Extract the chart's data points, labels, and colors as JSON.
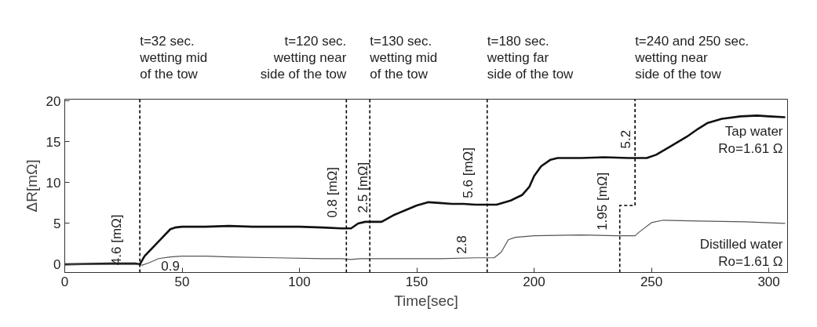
{
  "chart_data": {
    "type": "line",
    "xlabel": "Time[sec]",
    "ylabel": "ΔR[mΩ]",
    "xlim": [
      0,
      308
    ],
    "ylim": [
      -1,
      20.2
    ],
    "xticks": [
      0,
      50,
      100,
      150,
      200,
      250,
      300
    ],
    "yticks": [
      0,
      5,
      10,
      15,
      20
    ],
    "grid": false,
    "series": [
      {
        "name": "Tap water\nRo=1.61 Ω",
        "color": "#111111",
        "x": [
          0,
          20,
          30,
          32,
          34,
          40,
          45,
          47,
          50,
          60,
          70,
          80,
          90,
          100,
          110,
          118,
          122,
          125,
          128,
          132,
          135,
          140,
          145,
          150,
          155,
          160,
          165,
          170,
          175,
          180,
          184,
          190,
          195,
          198,
          200,
          203,
          207,
          210,
          220,
          230,
          240,
          248,
          252,
          258,
          265,
          270,
          274,
          280,
          288,
          295,
          300,
          307
        ],
        "values": [
          0,
          0.1,
          0.1,
          0,
          1,
          2.8,
          4.3,
          4.5,
          4.6,
          4.6,
          4.7,
          4.6,
          4.6,
          4.6,
          4.5,
          4.4,
          4.4,
          5.0,
          5.2,
          5.2,
          5.2,
          6.0,
          6.6,
          7.2,
          7.6,
          7.5,
          7.4,
          7.4,
          7.3,
          7.3,
          7.3,
          7.8,
          8.5,
          9.5,
          10.8,
          12.0,
          12.8,
          13.0,
          13.0,
          13.1,
          13.0,
          13.0,
          13.4,
          14.4,
          15.6,
          16.6,
          17.3,
          17.8,
          18.1,
          18.2,
          18.1,
          18.0
        ]
      },
      {
        "name": "Distilled water\nRo=1.61 Ω",
        "color": "#555555",
        "x": [
          0,
          30,
          33,
          36,
          40,
          45,
          50,
          60,
          70,
          90,
          110,
          118,
          122,
          126,
          135,
          150,
          160,
          175,
          183,
          186,
          189,
          192,
          200,
          220,
          235,
          243,
          245,
          250,
          255,
          270,
          290,
          307
        ],
        "values": [
          0,
          0,
          -0.1,
          0.2,
          0.7,
          0.9,
          1.0,
          1.0,
          0.9,
          0.8,
          0.7,
          0.7,
          0.6,
          0.7,
          0.7,
          0.7,
          0.7,
          0.8,
          0.8,
          1.5,
          3.0,
          3.3,
          3.5,
          3.6,
          3.5,
          3.5,
          4.0,
          5.1,
          5.4,
          5.3,
          5.2,
          5.0
        ]
      },
      {
        "color": "#000000",
        "line_style": "dashed",
        "x": [
          236.5,
          236.5,
          243,
          243
        ],
        "values": [
          -1,
          7.2,
          7.2,
          20.2
        ]
      }
    ],
    "ref_lines": [
      {
        "axis": "x",
        "value": 32,
        "label": "t=32 sec.\nwetting mid\nof the tow",
        "color": "#000000",
        "line_style": "dashed"
      },
      {
        "axis": "x",
        "value": 120,
        "label": "t=120 sec.\nwetting near\nside of the tow",
        "color": "#000000",
        "line_style": "dashed"
      },
      {
        "axis": "x",
        "value": 130,
        "label": "t=130 sec.\nwetting mid\nof the tow",
        "color": "#000000",
        "line_style": "dashed"
      },
      {
        "axis": "x",
        "value": 180,
        "label": "t=180 sec.\nwetting far\nside of the tow",
        "color": "#000000",
        "line_style": "dashed"
      }
    ],
    "annotations": [
      "t=240 and 250 sec.\nwetting near\nside of the tow",
      "4.6 [mΩ]",
      "0.9",
      "0.8 [mΩ]",
      "2.5 [mΩ]",
      "5.6 [mΩ]",
      "2.8",
      "1.95 [mΩ]",
      "5.2"
    ]
  }
}
